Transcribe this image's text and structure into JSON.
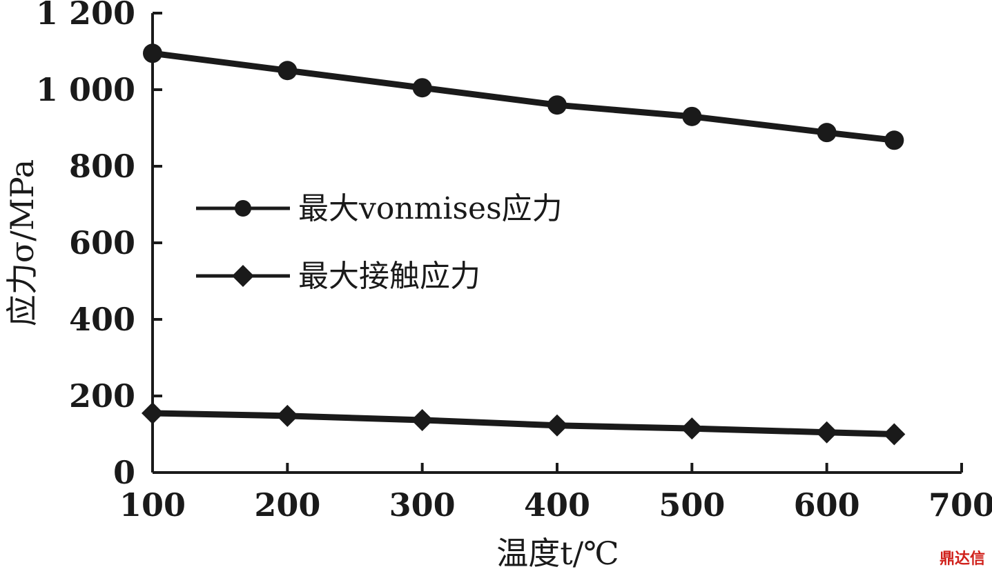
{
  "chart_data": {
    "type": "line",
    "title": "",
    "xlabel": "温度t/℃",
    "ylabel": "应力σ/MPa",
    "xlim": [
      100,
      700
    ],
    "ylim": [
      0,
      1200
    ],
    "x_ticks": [
      100,
      200,
      300,
      400,
      500,
      600,
      700
    ],
    "y_ticks": [
      0,
      200,
      400,
      600,
      800,
      1000,
      1200
    ],
    "y_tick_labels": [
      "0",
      "200",
      "400",
      "600",
      "800",
      "1 000",
      "1 200"
    ],
    "x_tick_labels": [
      "100",
      "200",
      "300",
      "400",
      "500",
      "600",
      "700"
    ],
    "grid": false,
    "legend": "center-left",
    "series": [
      {
        "name": "最大vonmises应力",
        "marker": "circle",
        "color": "#1a1a1a",
        "x": [
          100,
          200,
          300,
          400,
          500,
          600,
          650
        ],
        "y": [
          1095,
          1050,
          1005,
          960,
          930,
          888,
          868
        ]
      },
      {
        "name": "最大接触应力",
        "marker": "diamond",
        "color": "#1a1a1a",
        "x": [
          100,
          200,
          300,
          400,
          500,
          600,
          650
        ],
        "y": [
          155,
          148,
          137,
          123,
          115,
          105,
          100
        ]
      }
    ]
  },
  "watermark": "鼎达信"
}
